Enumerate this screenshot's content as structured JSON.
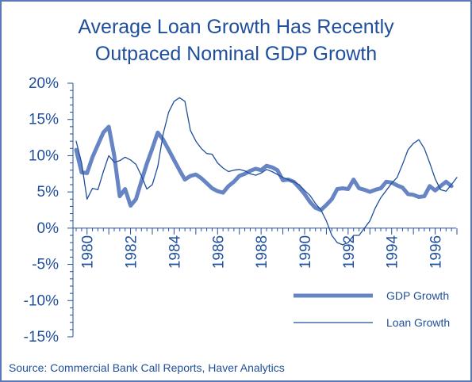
{
  "chart_data": {
    "type": "line",
    "title": [
      "Average Loan Growth Has Recently",
      "Outpaced Nominal GDP Growth"
    ],
    "source": "Source: Commercial Bank Call Reports, Haver Analytics",
    "x_ticks": [
      1980,
      1982,
      1984,
      1986,
      1988,
      1990,
      1992,
      1994,
      1996
    ],
    "x_tick_labels": [
      "1980",
      "1982",
      "1984",
      "1986",
      "1988",
      "1990",
      "1992",
      "1994",
      "1996"
    ],
    "xlim": [
      1979.5,
      1997.0
    ],
    "y_ticks": [
      20,
      15,
      10,
      5,
      0,
      -5,
      -10,
      -15
    ],
    "y_tick_labels": [
      "20%",
      "15%",
      "10%",
      "5%",
      "0%",
      "-5%",
      "-10%",
      "-15%"
    ],
    "ylim": [
      -15,
      20
    ],
    "grid": false,
    "legend_position": "bottom-right",
    "series": [
      {
        "name": "GDP Growth",
        "color": "#6785c4",
        "style": "thick",
        "points": [
          [
            1979.5,
            10.8
          ],
          [
            1979.75,
            7.7
          ],
          [
            1980.0,
            7.6
          ],
          [
            1980.25,
            9.8
          ],
          [
            1980.5,
            11.5
          ],
          [
            1980.75,
            13.2
          ],
          [
            1981.0,
            14.0
          ],
          [
            1981.25,
            10.0
          ],
          [
            1981.5,
            4.4
          ],
          [
            1981.75,
            5.4
          ],
          [
            1982.0,
            3.1
          ],
          [
            1982.25,
            4.0
          ],
          [
            1982.5,
            6.5
          ],
          [
            1982.75,
            8.9
          ],
          [
            1983.0,
            11.0
          ],
          [
            1983.25,
            13.2
          ],
          [
            1983.5,
            12.2
          ],
          [
            1983.75,
            10.8
          ],
          [
            1984.0,
            9.4
          ],
          [
            1984.25,
            8.0
          ],
          [
            1984.5,
            6.7
          ],
          [
            1984.75,
            7.2
          ],
          [
            1985.0,
            7.4
          ],
          [
            1985.25,
            6.9
          ],
          [
            1985.5,
            6.2
          ],
          [
            1985.75,
            5.5
          ],
          [
            1986.0,
            5.1
          ],
          [
            1986.25,
            4.9
          ],
          [
            1986.5,
            5.8
          ],
          [
            1986.75,
            6.4
          ],
          [
            1987.0,
            7.2
          ],
          [
            1987.25,
            7.5
          ],
          [
            1987.5,
            7.9
          ],
          [
            1987.75,
            8.2
          ],
          [
            1988.0,
            8.0
          ],
          [
            1988.25,
            8.6
          ],
          [
            1988.5,
            8.4
          ],
          [
            1988.75,
            8.0
          ],
          [
            1989.0,
            6.6
          ],
          [
            1989.25,
            6.7
          ],
          [
            1989.5,
            6.4
          ],
          [
            1989.75,
            5.6
          ],
          [
            1990.0,
            4.7
          ],
          [
            1990.25,
            3.6
          ],
          [
            1990.5,
            2.8
          ],
          [
            1990.75,
            2.5
          ],
          [
            1991.0,
            3.2
          ],
          [
            1991.25,
            4.0
          ],
          [
            1991.5,
            5.4
          ],
          [
            1991.75,
            5.5
          ],
          [
            1992.0,
            5.4
          ],
          [
            1992.25,
            6.7
          ],
          [
            1992.5,
            5.5
          ],
          [
            1992.75,
            5.3
          ],
          [
            1993.0,
            5.0
          ],
          [
            1993.25,
            5.3
          ],
          [
            1993.5,
            5.5
          ],
          [
            1993.75,
            6.4
          ],
          [
            1994.0,
            6.3
          ],
          [
            1994.25,
            5.9
          ],
          [
            1994.5,
            5.6
          ],
          [
            1994.75,
            4.7
          ],
          [
            1995.0,
            4.6
          ],
          [
            1995.25,
            4.3
          ],
          [
            1995.5,
            4.4
          ],
          [
            1995.75,
            5.8
          ],
          [
            1996.0,
            5.2
          ],
          [
            1996.25,
            5.8
          ],
          [
            1996.5,
            6.4
          ],
          [
            1996.75,
            5.8
          ]
        ]
      },
      {
        "name": "Loan Growth",
        "color": "#1f4f9c",
        "style": "thin",
        "points": [
          [
            1979.5,
            12.0
          ],
          [
            1979.75,
            9.0
          ],
          [
            1980.0,
            4.0
          ],
          [
            1980.25,
            5.5
          ],
          [
            1980.5,
            5.3
          ],
          [
            1980.75,
            7.8
          ],
          [
            1981.0,
            10.0
          ],
          [
            1981.25,
            9.1
          ],
          [
            1981.5,
            9.3
          ],
          [
            1981.75,
            9.8
          ],
          [
            1982.0,
            9.4
          ],
          [
            1982.25,
            8.8
          ],
          [
            1982.5,
            7.2
          ],
          [
            1982.75,
            5.4
          ],
          [
            1983.0,
            6.0
          ],
          [
            1983.25,
            8.5
          ],
          [
            1983.5,
            13.0
          ],
          [
            1983.75,
            16.0
          ],
          [
            1984.0,
            17.5
          ],
          [
            1984.25,
            18.0
          ],
          [
            1984.5,
            17.5
          ],
          [
            1984.75,
            13.5
          ],
          [
            1985.0,
            12.0
          ],
          [
            1985.25,
            11.0
          ],
          [
            1985.5,
            10.3
          ],
          [
            1985.75,
            10.2
          ],
          [
            1986.0,
            9.0
          ],
          [
            1986.25,
            8.3
          ],
          [
            1986.5,
            7.8
          ],
          [
            1986.75,
            8.0
          ],
          [
            1987.0,
            8.1
          ],
          [
            1987.25,
            7.9
          ],
          [
            1987.5,
            7.5
          ],
          [
            1987.75,
            7.3
          ],
          [
            1988.0,
            7.6
          ],
          [
            1988.25,
            8.1
          ],
          [
            1988.5,
            7.8
          ],
          [
            1988.75,
            7.4
          ],
          [
            1989.0,
            7.0
          ],
          [
            1989.25,
            6.7
          ],
          [
            1989.5,
            6.4
          ],
          [
            1989.75,
            6.0
          ],
          [
            1990.0,
            5.2
          ],
          [
            1990.25,
            4.5
          ],
          [
            1990.5,
            3.4
          ],
          [
            1990.75,
            2.5
          ],
          [
            1991.0,
            1.0
          ],
          [
            1991.25,
            -1.0
          ],
          [
            1991.5,
            -2.0
          ],
          [
            1991.75,
            -2.3
          ],
          [
            1992.0,
            -2.0
          ],
          [
            1992.25,
            -1.0
          ],
          [
            1992.5,
            -1.0
          ],
          [
            1992.75,
            0.0
          ],
          [
            1993.0,
            1.0
          ],
          [
            1993.25,
            2.8
          ],
          [
            1993.5,
            4.2
          ],
          [
            1993.75,
            5.2
          ],
          [
            1994.0,
            6.2
          ],
          [
            1994.25,
            7.0
          ],
          [
            1994.5,
            8.8
          ],
          [
            1994.75,
            10.8
          ],
          [
            1995.0,
            11.7
          ],
          [
            1995.25,
            12.2
          ],
          [
            1995.5,
            11.0
          ],
          [
            1995.75,
            9.0
          ],
          [
            1996.0,
            6.8
          ],
          [
            1996.25,
            5.3
          ],
          [
            1996.5,
            5.1
          ],
          [
            1996.75,
            6.0
          ],
          [
            1997.0,
            7.0
          ]
        ]
      }
    ]
  }
}
